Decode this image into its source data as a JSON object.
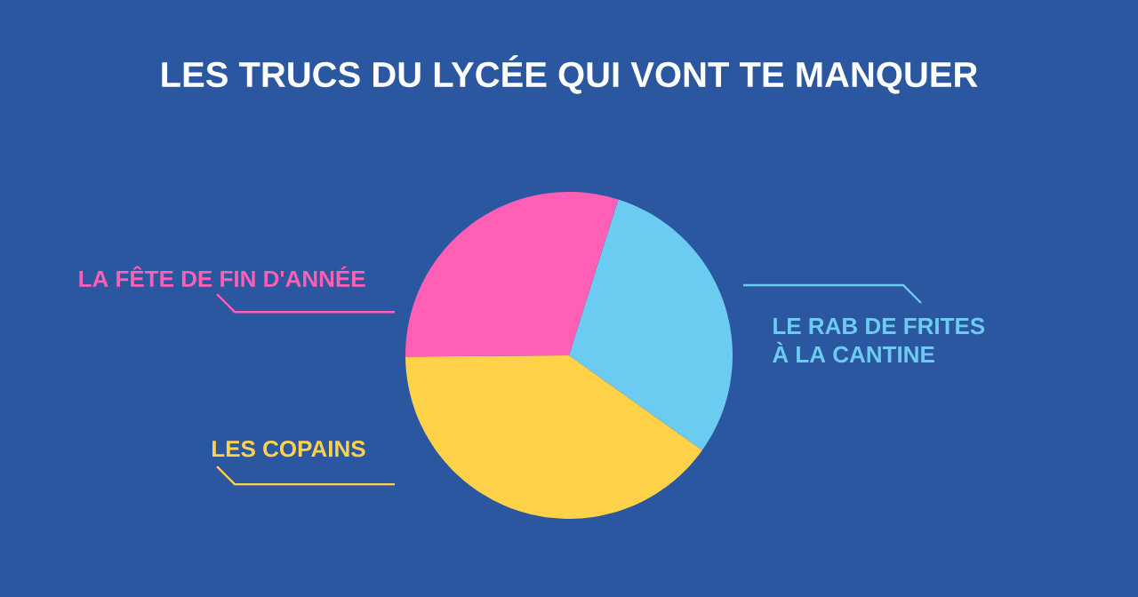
{
  "chart_data": {
    "type": "pie",
    "title": "LES TRUCS DU LYCÉE QUI VONT TE MANQUER",
    "categories": [
      "LE RAB DE FRITES À LA CANTINE",
      "LES COPAINS",
      "LA FÊTE DE FIN D'ANNÉE"
    ],
    "values": [
      30,
      40,
      30
    ],
    "colors": [
      "#6ccbf0",
      "#ffd24a",
      "#ff5fb4"
    ]
  }
}
